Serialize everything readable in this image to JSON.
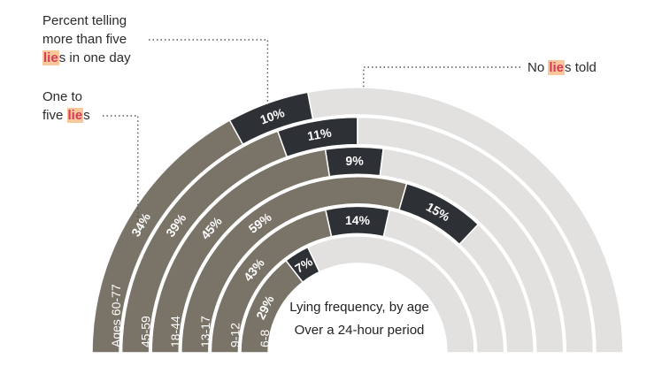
{
  "annotations": {
    "more_than_five": {
      "line1": "Percent telling",
      "line2": "more than five",
      "pre": "",
      "highlight": "lie",
      "post": "s in one day"
    },
    "one_to_five": {
      "line1": "One to",
      "pre": "five ",
      "highlight": "lie",
      "post": "s"
    },
    "none": {
      "pre": "No ",
      "highlight": "lie",
      "post": "s told"
    }
  },
  "titles": {
    "title": "Lying frequency, by age",
    "subtitle": "Over a 24-hour period"
  },
  "colors": {
    "one_to_five": "#7a7468",
    "more_than_five": "#2d3034",
    "none": "#e2e1df",
    "separator": "#ffffff",
    "label_text": "#ffffff",
    "leader": "#555555"
  },
  "chart_data": {
    "type": "radial-stacked-bar",
    "title": "Lying frequency, by age",
    "subtitle": "Over a 24-hour period",
    "categories": [
      "Ages 60-77",
      "45-59",
      "18-44",
      "13-17",
      "9-12",
      "6-8"
    ],
    "series": [
      {
        "name": "One to five lies",
        "values": [
          34,
          39,
          45,
          59,
          43,
          29
        ]
      },
      {
        "name": "Percent telling more than five lies in one day",
        "values": [
          10,
          11,
          9,
          15,
          14,
          7
        ]
      },
      {
        "name": "No lies told",
        "values": [
          56,
          50,
          46,
          26,
          43,
          64
        ]
      }
    ],
    "unit": "%"
  }
}
